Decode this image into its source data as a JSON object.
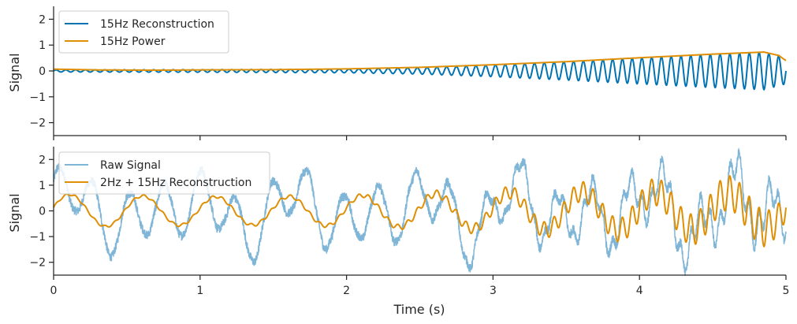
{
  "chart_data": [
    {
      "type": "line",
      "ylabel": "Signal",
      "xlim": [
        0,
        5
      ],
      "ylim": [
        -2.5,
        2.5
      ],
      "yticks": [
        -2,
        -1,
        0,
        1,
        2
      ],
      "ytick_labels": [
        "−2",
        "−1",
        "0",
        "1",
        "2"
      ],
      "xticks": [
        0,
        1,
        2,
        3,
        4,
        5
      ],
      "legend_position": "top-left",
      "grid": false,
      "series": [
        {
          "name": "15Hz Reconstruction",
          "color": "#0173b2",
          "frequency_hz": 15,
          "amplitude_envelope": {
            "x": [
              0,
              1,
              2,
              2.5,
              3,
              3.5,
              4,
              4.5,
              4.85,
              5
            ],
            "y": [
              0.04,
              0.05,
              0.07,
              0.12,
              0.22,
              0.35,
              0.5,
              0.64,
              0.72,
              0.5
            ]
          }
        },
        {
          "name": "15Hz Power",
          "color": "#de8f05",
          "x": [
            0,
            0.3,
            0.7,
            1,
            1.5,
            2,
            2.5,
            3,
            3.5,
            4,
            4.5,
            4.85,
            4.95,
            5
          ],
          "y": [
            0.07,
            0.04,
            0.03,
            0.04,
            0.05,
            0.08,
            0.14,
            0.24,
            0.36,
            0.51,
            0.65,
            0.73,
            0.6,
            0.4
          ]
        }
      ]
    },
    {
      "type": "line",
      "xlabel": "Time (s)",
      "ylabel": "Signal",
      "xlim": [
        0,
        5
      ],
      "ylim": [
        -2.5,
        2.5
      ],
      "yticks": [
        -2,
        -1,
        0,
        1,
        2
      ],
      "ytick_labels": [
        "−2",
        "−1",
        "0",
        "1",
        "2"
      ],
      "xticks": [
        0,
        1,
        2,
        3,
        4,
        5
      ],
      "xtick_labels": [
        "0",
        "1",
        "2",
        "3",
        "4",
        "5"
      ],
      "legend_position": "top-left",
      "grid": false,
      "series": [
        {
          "name": "Raw Signal",
          "color": "#7fb5d6"
        },
        {
          "name": "2Hz + 15Hz Reconstruction",
          "color": "#de8f05"
        }
      ]
    }
  ]
}
